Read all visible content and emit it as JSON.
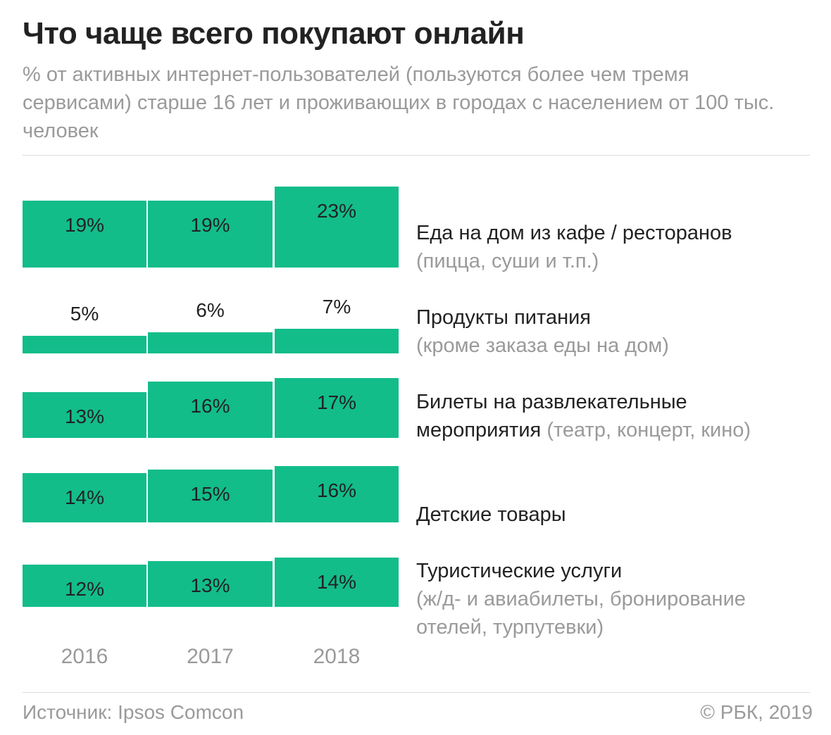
{
  "header": {
    "title": "Что чаще всего покупают онлайн",
    "subtitle": "% от активных интернет-пользователей (пользуются более чем тремя сервисами) старше 16 лет и проживающих в городах с населением от 100 тыс. человек"
  },
  "colors": {
    "bar": "#12bd8a",
    "label_on_bar": "#222222",
    "muted": "#9a9a9a"
  },
  "chart_data": {
    "type": "bar",
    "title": "Что чаще всего покупают онлайн",
    "years": [
      "2016",
      "2017",
      "2018"
    ],
    "ylabel": "%",
    "series": [
      {
        "name": "Еда на дом из кафе / ресторанов",
        "note": "(пицца, суши и т.п.)",
        "values": [
          19,
          19,
          23
        ],
        "labels": [
          "19%",
          "19%",
          "23%"
        ]
      },
      {
        "name": "Продукты питания",
        "note": "(кроме заказа еды на дом)",
        "values": [
          5,
          6,
          7
        ],
        "labels": [
          "5%",
          "6%",
          "7%"
        ]
      },
      {
        "name": "Билеты на развлекательные мероприятия",
        "name_line1": "Билеты на развлекательные",
        "name_line2": "мероприятия",
        "note": "(театр, концерт, кино)",
        "values": [
          13,
          16,
          17
        ],
        "labels": [
          "13%",
          "16%",
          "17%"
        ]
      },
      {
        "name": "Детские товары",
        "note": "",
        "values": [
          14,
          15,
          16
        ],
        "labels": [
          "14%",
          "15%",
          "16%"
        ]
      },
      {
        "name": "Туристические услуги",
        "note": "(ж/д- и авиабилеты, бронирование отелей, турпутевки)",
        "note_line1": "(ж/д- и авиабилеты, бронирование",
        "note_line2": "отелей, турпутевки)",
        "values": [
          12,
          13,
          14
        ],
        "labels": [
          "12%",
          "13%",
          "14%"
        ]
      }
    ]
  },
  "footer": {
    "source": "Источник: Ipsos Comcon",
    "copyright": "© РБК, 2019"
  }
}
